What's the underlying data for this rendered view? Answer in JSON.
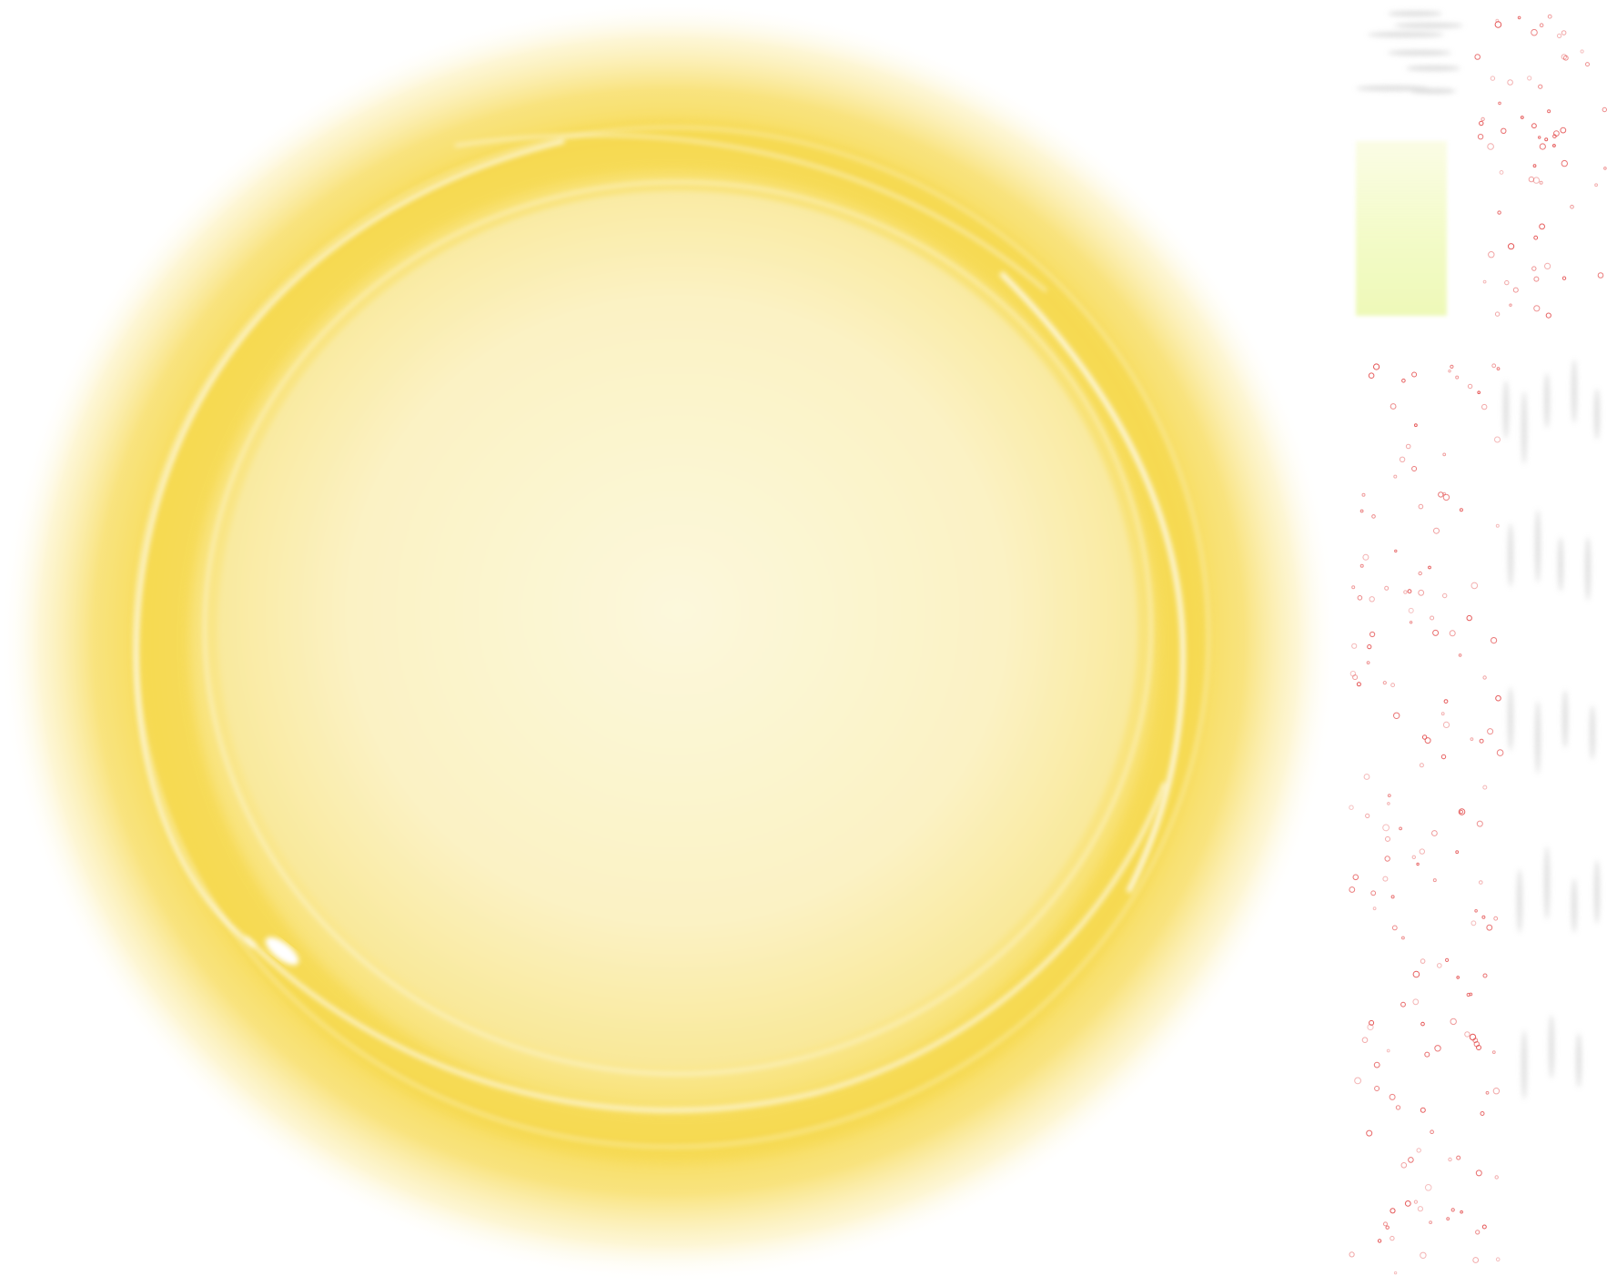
{
  "canvas": {
    "background": "#ffffff"
  },
  "glow_ring": {
    "outer_glow_color": "#f7dc5a",
    "inner_fill_color": "#fcf7d6",
    "ring_color": "#f5d74a",
    "highlight_color": "#ffffff"
  },
  "swatch": {
    "top_color": "#fbfde6",
    "bottom_color": "#eef9b8"
  },
  "particles": {
    "dot_color": "#e34b4b"
  },
  "streaks": {
    "color": "#cfcfcf"
  }
}
